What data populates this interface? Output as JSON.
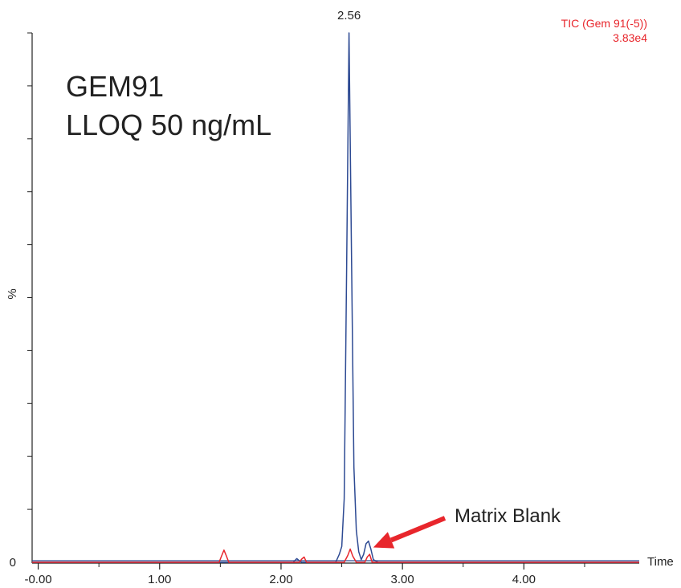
{
  "chart_data": {
    "type": "line",
    "title": "GEM91",
    "subtitle": "LLOQ 50 ng/mL",
    "xlabel": "Time",
    "ylabel": "%",
    "xlim": [
      -0.05,
      4.95
    ],
    "ylim": [
      0,
      100
    ],
    "xticks": [
      {
        "value": -0.0,
        "label": "-0.00"
      },
      {
        "value": 1.0,
        "label": "1.00"
      },
      {
        "value": 2.0,
        "label": "2.00"
      },
      {
        "value": 3.0,
        "label": "3.00"
      },
      {
        "value": 4.0,
        "label": "4.00"
      }
    ],
    "yticks": [
      {
        "value": 0,
        "label": "0"
      }
    ],
    "peak_label": {
      "x": 2.56,
      "text": "2.56"
    },
    "trace_info": {
      "name": "TIC (Gem 91(-5))",
      "intensity": "3.83e4",
      "color": "#e8262c"
    },
    "annotation": {
      "text": "Matrix Blank",
      "target_x": 2.72,
      "target_y": 2.5,
      "color": "#e8262c"
    },
    "series": [
      {
        "color": "#2d4a93",
        "x": [
          -0.05,
          2.1,
          2.13,
          2.15,
          2.17,
          2.45,
          2.48,
          2.5,
          2.52,
          2.54,
          2.56,
          2.58,
          2.6,
          2.62,
          2.64,
          2.66,
          2.68,
          2.7,
          2.72,
          2.74,
          2.76,
          2.8,
          4.95
        ],
        "y": [
          0,
          0,
          0.7,
          0.3,
          0,
          0,
          1.5,
          3,
          12,
          55,
          100,
          58,
          18,
          6,
          2,
          0.5,
          1.5,
          3.5,
          4,
          2.5,
          0.5,
          0,
          0
        ]
      },
      {
        "color": "#e8262c",
        "x": [
          -0.05,
          1.49,
          1.51,
          1.53,
          1.55,
          1.57,
          2.15,
          2.17,
          2.19,
          2.21,
          2.52,
          2.55,
          2.57,
          2.59,
          2.62,
          2.69,
          2.71,
          2.73,
          2.75,
          4.95
        ],
        "y": [
          0,
          0,
          1.2,
          2.3,
          1.2,
          0,
          0,
          0.6,
          1.0,
          0,
          0,
          1.3,
          2.5,
          1.2,
          0,
          0,
          1.0,
          1.5,
          0,
          0
        ]
      }
    ]
  }
}
